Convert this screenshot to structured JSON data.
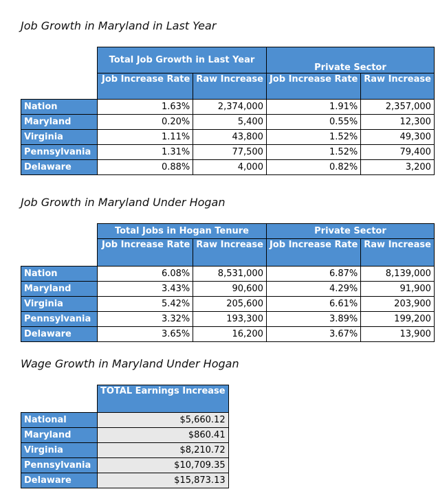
{
  "section1": {
    "title": "Job Growth in Maryland in Last Year",
    "group1": "Total Job Growth in Last Year",
    "group2": "Private Sector",
    "col_rate": "Job Increase Rate",
    "col_raw": "Raw Increase",
    "rows": [
      {
        "name": "Nation",
        "rate1": "1.63%",
        "raw1": "2,374,000",
        "rate2": "1.91%",
        "raw2": "2,357,000"
      },
      {
        "name": "Maryland",
        "rate1": "0.20%",
        "raw1": "5,400",
        "rate2": "0.55%",
        "raw2": "12,300"
      },
      {
        "name": "Virginia",
        "rate1": "1.11%",
        "raw1": "43,800",
        "rate2": "1.52%",
        "raw2": "49,300"
      },
      {
        "name": "Pennsylvania",
        "rate1": "1.31%",
        "raw1": "77,500",
        "rate2": "1.52%",
        "raw2": "79,400"
      },
      {
        "name": "Delaware",
        "rate1": "0.88%",
        "raw1": "4,000",
        "rate2": "0.82%",
        "raw2": "3,200"
      }
    ]
  },
  "section2": {
    "title": "Job Growth in Maryland Under Hogan",
    "group1": "Total Jobs in Hogan Tenure",
    "group2": "Private Sector",
    "col_rate": "Job Increase Rate",
    "col_raw": "Raw Increase",
    "rows": [
      {
        "name": "Nation",
        "rate1": "6.08%",
        "raw1": "8,531,000",
        "rate2": "6.87%",
        "raw2": "8,139,000"
      },
      {
        "name": "Maryland",
        "rate1": "3.43%",
        "raw1": "90,600",
        "rate2": "4.29%",
        "raw2": "91,900"
      },
      {
        "name": "Virginia",
        "rate1": "5.42%",
        "raw1": "205,600",
        "rate2": "6.61%",
        "raw2": "203,900"
      },
      {
        "name": "Pennsylvania",
        "rate1": "3.32%",
        "raw1": "193,300",
        "rate2": "3.89%",
        "raw2": "199,200"
      },
      {
        "name": "Delaware",
        "rate1": "3.65%",
        "raw1": "16,200",
        "rate2": "3.67%",
        "raw2": "13,900"
      }
    ]
  },
  "section3": {
    "title": "Wage Growth in Maryland Under Hogan",
    "col": "TOTAL Earnings Increase",
    "rows": [
      {
        "name": "National",
        "value": "$5,660.12"
      },
      {
        "name": "Maryland",
        "value": "$860.41"
      },
      {
        "name": "Virginia",
        "value": "$8,210.72"
      },
      {
        "name": "Pennsylvania",
        "value": "$10,709.35"
      },
      {
        "name": "Delaware",
        "value": "$15,873.13"
      }
    ]
  }
}
